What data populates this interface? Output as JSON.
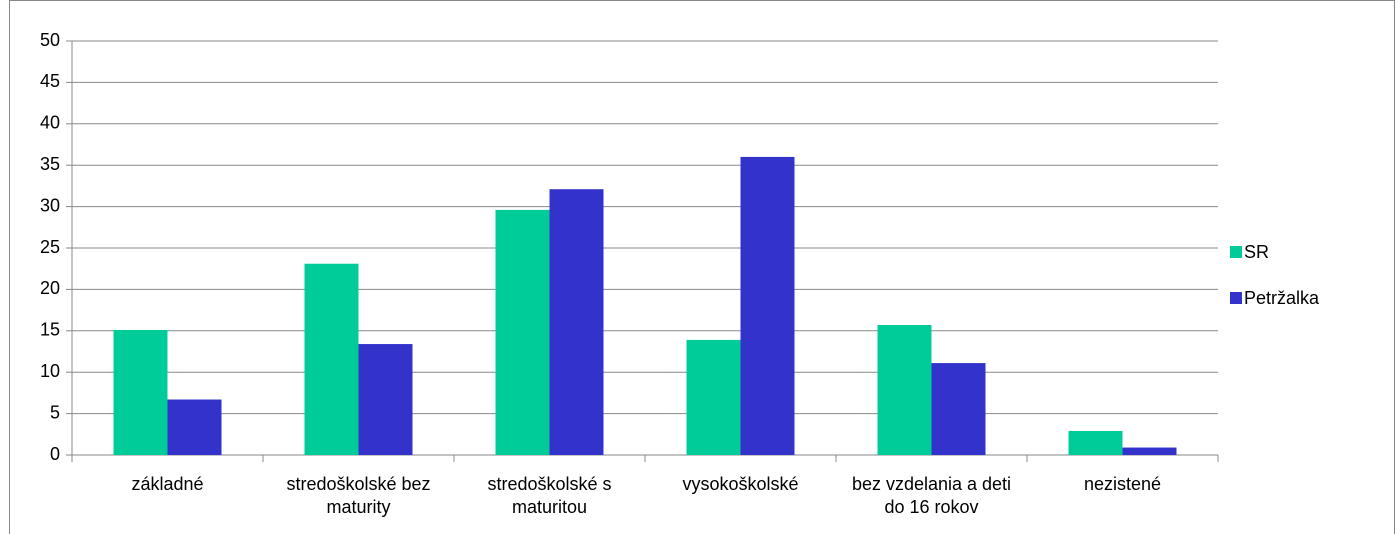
{
  "chart_data": {
    "type": "bar",
    "categories": [
      "základné",
      "stredoškolské bez maturity",
      "stredoškolské s maturitou",
      "vysokoškolské",
      "bez vzdelania a deti do 16 rokov",
      "nezistené"
    ],
    "series": [
      {
        "name": "SR",
        "color": "#00cc99",
        "values": [
          15.1,
          23.1,
          29.6,
          13.9,
          15.7,
          2.9
        ]
      },
      {
        "name": "Petržalka",
        "color": "#3333cc",
        "values": [
          6.7,
          13.4,
          32.1,
          36.0,
          11.1,
          0.9
        ]
      }
    ],
    "ylim": [
      0,
      50
    ],
    "yticks": [
      0,
      5,
      10,
      15,
      20,
      25,
      30,
      35,
      40,
      45,
      50
    ],
    "grid": true,
    "legend": "right"
  }
}
